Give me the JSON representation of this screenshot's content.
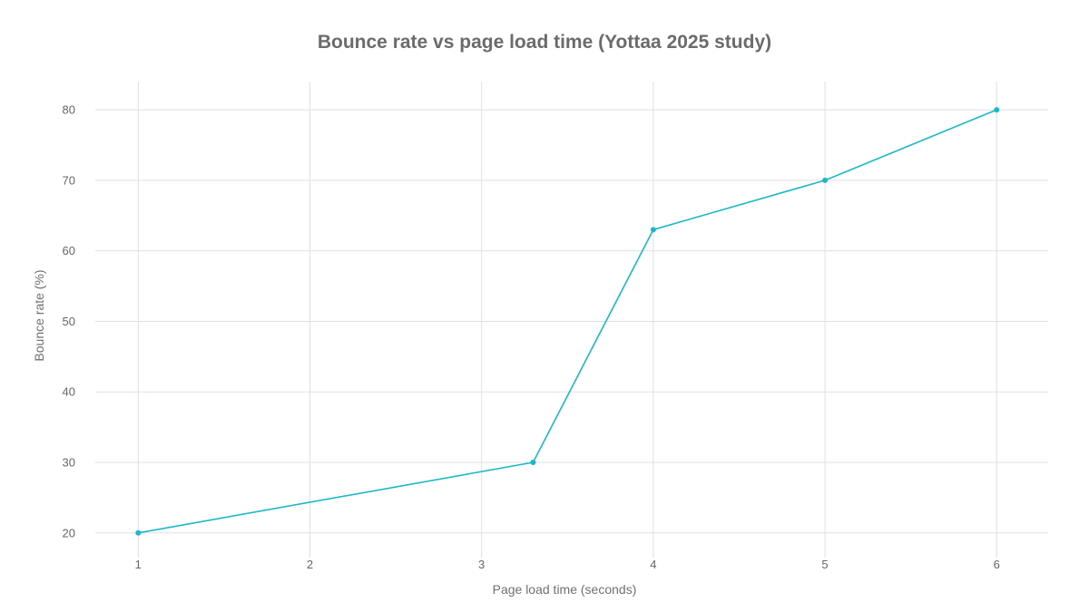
{
  "chart_data": {
    "type": "line",
    "title": "Bounce rate vs page load time (Yottaa 2025 study)",
    "xlabel": "Page load time (seconds)",
    "ylabel": "Bounce rate (%)",
    "x": [
      1,
      3.3,
      4,
      5,
      6
    ],
    "series": [
      {
        "values": [
          20,
          30,
          63,
          70,
          80
        ]
      }
    ],
    "xticks": [
      1,
      2,
      3,
      4,
      5,
      6
    ],
    "yticks": [
      20,
      30,
      40,
      50,
      60,
      70,
      80
    ],
    "xlim": [
      0.75,
      6.3
    ],
    "ylim": [
      16.5,
      84
    ],
    "grid": true,
    "legend": "none",
    "line_color": "#1cb8c8"
  }
}
